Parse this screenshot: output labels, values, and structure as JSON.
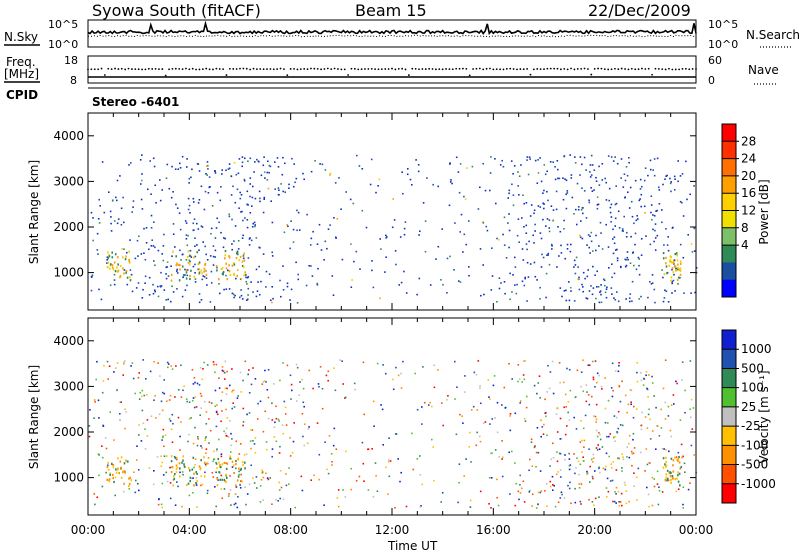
{
  "header": {
    "station": "Syowa South (fitACF)",
    "beam": "Beam 15",
    "date": "22/Dec/2009"
  },
  "noise_panel": {
    "left_label": "N.Sky",
    "right_label": "N.Search",
    "left_ticks": [
      "10^5",
      "10^0"
    ],
    "right_ticks": [
      "10^5",
      "10^0"
    ]
  },
  "freq_panel": {
    "left_label_1": "Freq.",
    "left_label_2": "[MHz]",
    "right_label": "Nave",
    "left_ticks": [
      "18",
      "8"
    ],
    "right_ticks": [
      "60",
      "0"
    ]
  },
  "cpid_label": "CPID",
  "mode_label": "Stereo -6401",
  "x_axis": {
    "title": "Time UT",
    "ticks": [
      "00:00",
      "04:00",
      "08:00",
      "12:00",
      "16:00",
      "20:00",
      "00:00"
    ]
  },
  "y_axis": {
    "title": "Slant Range [km]",
    "ticks": [
      "1000",
      "2000",
      "3000",
      "4000"
    ]
  },
  "power_colorbar": {
    "title": "Power [dB]",
    "ticks": [
      "28",
      "24",
      "20",
      "16",
      "12",
      "8",
      "4"
    ],
    "colors": [
      "#ff0000",
      "#ff3000",
      "#ff7000",
      "#ffa000",
      "#ffd000",
      "#f0e000",
      "#7dc06a",
      "#2e8a57",
      "#1a4fa0",
      "#0000ff"
    ]
  },
  "velocity_colorbar": {
    "title": "Velocity [m s⁻¹]",
    "ticks": [
      "1000",
      "500",
      "100",
      "25",
      "-25",
      "-100",
      "-500",
      "-1000"
    ],
    "colors": [
      "#1020d0",
      "#2050b0",
      "#2e8a57",
      "#50c030",
      "#c0c0c0",
      "#ffc000",
      "#ff9000",
      "#ff5000",
      "#ff0000"
    ]
  },
  "chart_data": [
    {
      "type": "line",
      "title": "Syowa South (fitACF) Beam 15 22/Dec/2009",
      "panel": "noise",
      "xlabel": "Time UT",
      "ylabel": "N.Sky",
      "yscale": "log",
      "ylim": [
        1,
        100000
      ],
      "series": [
        {
          "name": "N.Sky",
          "x": [
            "00:00",
            "04:00",
            "08:00",
            "12:00",
            "16:00",
            "20:00",
            "24:00"
          ],
          "values": [
            3000,
            3000,
            3000,
            3000,
            3000,
            3000,
            3000
          ]
        },
        {
          "name": "N.Search",
          "x": [
            "00:00",
            "04:00",
            "08:00",
            "12:00",
            "16:00",
            "20:00",
            "24:00"
          ],
          "values": [
            1000,
            1000,
            1000,
            1000,
            1000,
            1000,
            1000
          ]
        }
      ]
    },
    {
      "type": "line",
      "panel": "frequency",
      "xlabel": "Time UT",
      "ylabel": "Freq. [MHz]",
      "ylim": [
        8,
        18
      ],
      "series": [
        {
          "name": "Freq.",
          "x": [
            "00:00",
            "04:00",
            "08:00",
            "12:00",
            "16:00",
            "20:00",
            "24:00"
          ],
          "values": [
            10,
            10,
            10,
            10,
            10,
            10,
            10
          ]
        },
        {
          "name": "Nave",
          "x": [
            "00:00",
            "04:00",
            "08:00",
            "12:00",
            "16:00",
            "20:00",
            "24:00"
          ],
          "values": [
            30,
            30,
            30,
            30,
            30,
            30,
            30
          ]
        }
      ]
    },
    {
      "type": "heatmap",
      "panel": "power",
      "xlabel": "Time UT",
      "ylabel": "Slant Range [km]",
      "colorbar_label": "Power [dB]",
      "xlim": [
        "00:00",
        "24:00"
      ],
      "ylim": [
        180,
        4500
      ],
      "clim": [
        0,
        30
      ],
      "note": "sparse scatter echoes mostly 3-8 dB across 500-3600 km"
    },
    {
      "type": "heatmap",
      "panel": "velocity",
      "xlabel": "Time UT",
      "ylabel": "Slant Range [km]",
      "colorbar_label": "Velocity [m s-1]",
      "xlim": [
        "00:00",
        "24:00"
      ],
      "ylim": [
        180,
        4500
      ],
      "clim": [
        -1000,
        1000
      ]
    }
  ]
}
